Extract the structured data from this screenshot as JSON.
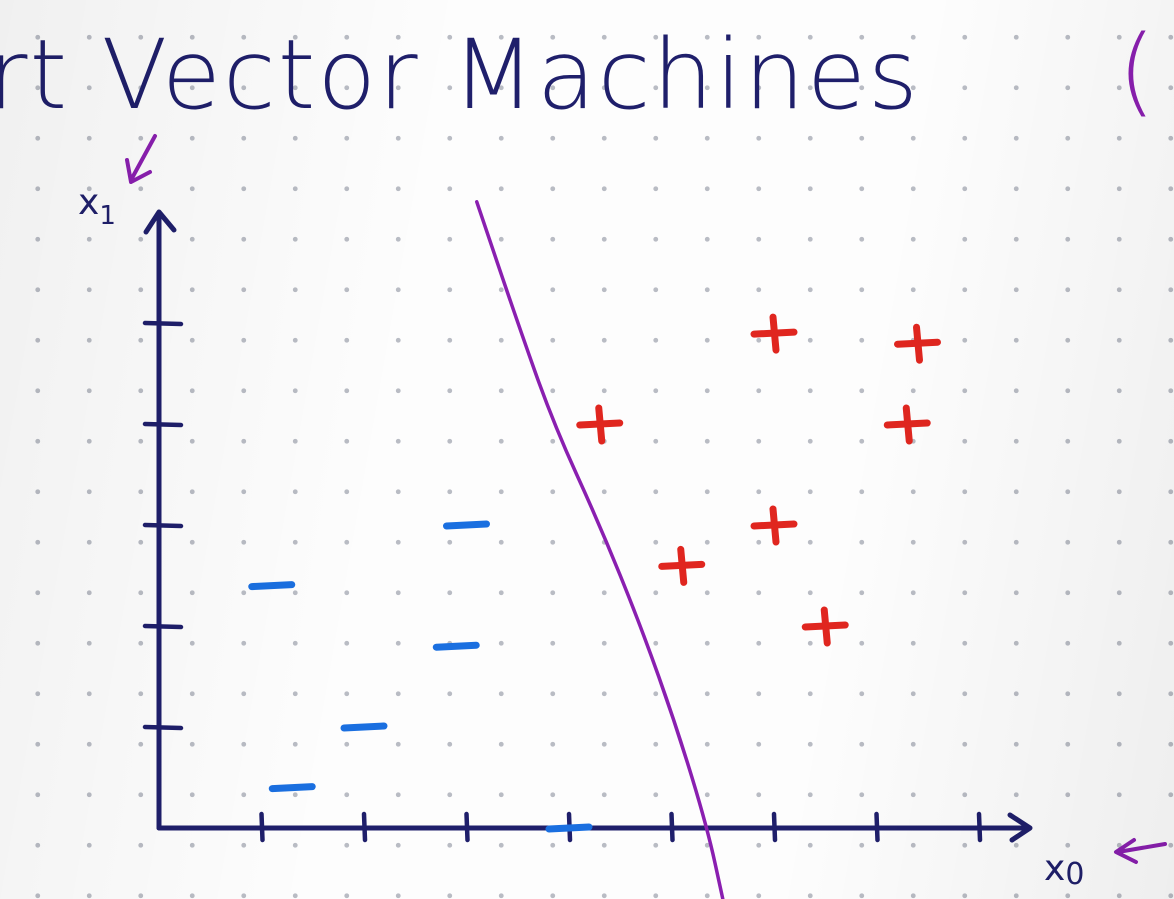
{
  "title": {
    "text": "rt Vector Machines",
    "trailing_mark": "(",
    "color": "#1f1f6b",
    "paren_color": "#8a1fb0"
  },
  "axes": {
    "x_label": "x",
    "x_label_subscript": "0",
    "y_label": "x",
    "y_label_subscript": "1",
    "axis_color": "#1f1f6b",
    "annotation_color": "#8a1fb0"
  },
  "chart_data": {
    "type": "scatter",
    "xlim": [
      0,
      8.5
    ],
    "ylim": [
      0,
      6
    ],
    "x_ticks": [
      1,
      2,
      3,
      4,
      5,
      6,
      7,
      8
    ],
    "y_ticks": [
      1,
      2,
      3,
      4,
      5
    ],
    "series": [
      {
        "marker": "minus",
        "color": "#1a6fe0",
        "points": [
          [
            1.1,
            2.4
          ],
          [
            1.3,
            0.4
          ],
          [
            2.0,
            1.0
          ],
          [
            2.9,
            1.8
          ],
          [
            3.0,
            3.0
          ],
          [
            4.0,
            0.0
          ]
        ]
      },
      {
        "marker": "plus",
        "color": "#e0261f",
        "points": [
          [
            4.3,
            4.0
          ],
          [
            5.1,
            2.6
          ],
          [
            6.0,
            4.9
          ],
          [
            6.0,
            3.0
          ],
          [
            6.5,
            2.0
          ],
          [
            7.3,
            4.0
          ],
          [
            7.4,
            4.8
          ]
        ]
      }
    ],
    "boundary": {
      "color": "#8a1fb0",
      "points": [
        [
          3.1,
          6.2
        ],
        [
          3.5,
          5.0
        ],
        [
          3.85,
          4.0
        ],
        [
          4.3,
          3.0
        ],
        [
          4.7,
          2.0
        ],
        [
          5.05,
          1.0
        ],
        [
          5.35,
          0.0
        ],
        [
          5.5,
          -0.7
        ]
      ]
    }
  }
}
